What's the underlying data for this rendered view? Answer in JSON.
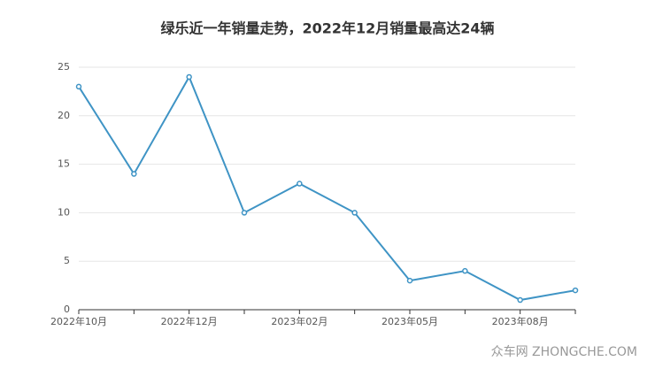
{
  "chart_data": {
    "type": "line",
    "title": "绿乐近一年销量走势，2022年12月销量最高达24辆",
    "categories": [
      "2022年10月",
      null,
      "2022年12月",
      null,
      "2023年02月",
      null,
      "2023年05月",
      null,
      "2023年08月",
      null
    ],
    "series": [
      {
        "name": "销量",
        "color": "#3f94c5",
        "values": [
          23,
          14,
          24,
          10,
          13,
          10,
          3,
          4,
          1,
          2
        ]
      }
    ],
    "ylim": [
      0,
      25
    ],
    "yticks": [
      0,
      5,
      10,
      15,
      20,
      25
    ],
    "grid": true
  },
  "watermark": "众车网 ZHONGCHE.COM"
}
